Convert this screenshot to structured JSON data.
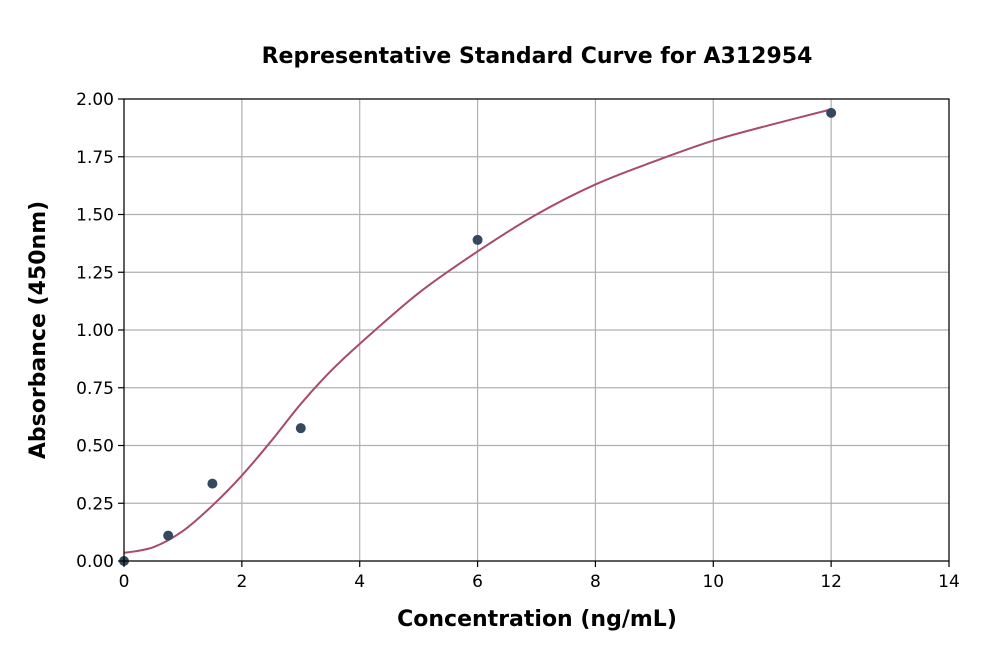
{
  "chart_data": {
    "type": "scatter",
    "title": "Representative Standard Curve for A312954",
    "xlabel": "Concentration (ng/mL)",
    "ylabel": "Absorbance (450nm)",
    "xlim": [
      0,
      14
    ],
    "ylim": [
      0,
      2.0
    ],
    "xticks": [
      0,
      2,
      4,
      6,
      8,
      10,
      12,
      14
    ],
    "xtick_labels": [
      "0",
      "2",
      "4",
      "6",
      "8",
      "10",
      "12",
      "14"
    ],
    "yticks": [
      0,
      0.25,
      0.5,
      0.75,
      1.0,
      1.25,
      1.5,
      1.75,
      2.0
    ],
    "ytick_labels": [
      "0.00",
      "0.25",
      "0.50",
      "0.75",
      "1.00",
      "1.25",
      "1.50",
      "1.75",
      "2.00"
    ],
    "grid": true,
    "series": [
      {
        "kind": "points",
        "color": "#34495e",
        "x": [
          0,
          0.75,
          1.5,
          3,
          6,
          12
        ],
        "y": [
          0.0,
          0.11,
          0.335,
          0.575,
          1.39,
          1.94
        ]
      },
      {
        "kind": "fitted-curve",
        "color": "#a84b6a",
        "x": [
          0,
          0.5,
          1,
          1.5,
          2,
          2.5,
          3,
          3.5,
          4,
          5,
          6,
          7,
          8,
          9,
          10,
          11,
          12
        ],
        "y": [
          0.035,
          0.06,
          0.13,
          0.24,
          0.37,
          0.52,
          0.68,
          0.82,
          0.94,
          1.16,
          1.34,
          1.5,
          1.63,
          1.73,
          1.82,
          1.89,
          1.955
        ]
      }
    ]
  }
}
